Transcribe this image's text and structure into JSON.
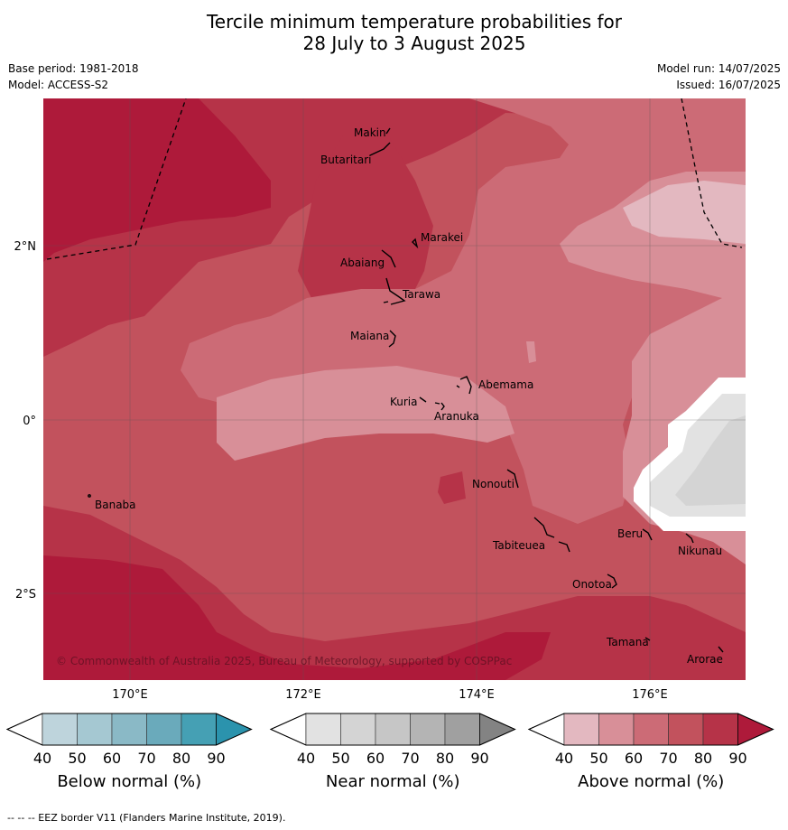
{
  "title_line1": "Tercile minimum temperature probabilities for",
  "title_line2": "28 July to 3 August 2025",
  "base_period": "Base period: 1981-2018",
  "model": "Model: ACCESS-S2",
  "model_run": "Model run: 14/07/2025",
  "issued": "Issued: 16/07/2025",
  "map": {
    "lat_labels": [
      "2°N",
      "0°",
      "2°S"
    ],
    "lon_labels": [
      "170°E",
      "172°E",
      "174°E",
      "176°E"
    ],
    "places": [
      "Makin",
      "Butaritari",
      "Marakei",
      "Abaiang",
      "Tarawa",
      "Maiana",
      "Abemama",
      "Kuria",
      "Aranuka",
      "Banaba",
      "Nonouti",
      "Tabiteuea",
      "Beru",
      "Nikunau",
      "Onotoa",
      "Tamana",
      "Arorae"
    ],
    "copyright": "© Commonwealth of Australia 2025, Bureau of Meteorology, supported by COSPPac"
  },
  "colorbars": [
    {
      "label": "Below normal (%)",
      "ticks": [
        "40",
        "50",
        "60",
        "70",
        "80",
        "90"
      ],
      "colors": [
        "#ffffff",
        "#bed4dc",
        "#a5c8d2",
        "#8ab9c6",
        "#6aaabb",
        "#45a0b4",
        "#2b93ad"
      ]
    },
    {
      "label": "Near normal (%)",
      "ticks": [
        "40",
        "50",
        "60",
        "70",
        "80",
        "90"
      ],
      "colors": [
        "#ffffff",
        "#e2e2e2",
        "#d4d4d4",
        "#c6c6c6",
        "#b4b4b4",
        "#a0a0a0",
        "#838383"
      ]
    },
    {
      "label": "Above normal (%)",
      "ticks": [
        "40",
        "50",
        "60",
        "70",
        "80",
        "90"
      ],
      "colors": [
        "#ffffff",
        "#e3b8c0",
        "#d88f98",
        "#cc6b76",
        "#c2525d",
        "#b63348",
        "#ae1a3a"
      ]
    }
  ],
  "footnote": "--  --  -- EEZ border V11 (Flanders Marine Institute, 2019)."
}
